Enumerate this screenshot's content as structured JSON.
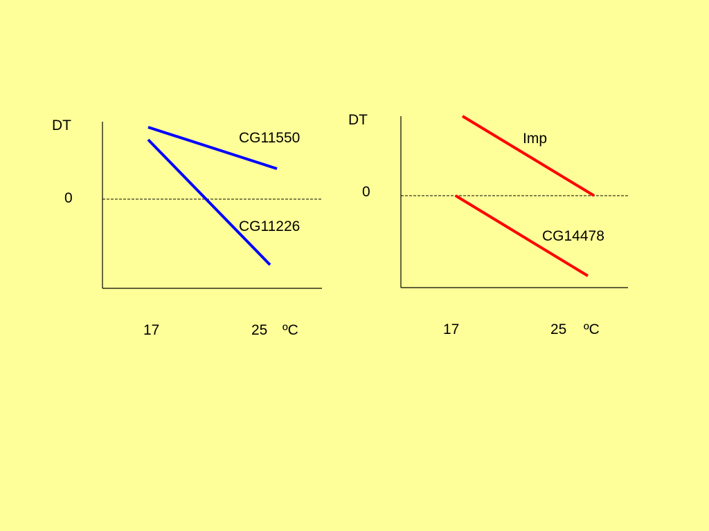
{
  "colors": {
    "background": "#FFFF99",
    "left_lines": "#0000FF",
    "right_lines": "#FF0000",
    "axis": "#000000"
  },
  "left_panel": {
    "y_label": "DT",
    "zero_label": "0",
    "x_tick_17": "17",
    "x_tick_25": "25",
    "x_unit": "ºC",
    "line_upper_label": "CG11550",
    "line_lower_label": "CG11226"
  },
  "right_panel": {
    "y_label": "DT",
    "zero_label": "0",
    "x_tick_17": "17",
    "x_tick_25": "25",
    "x_unit": "ºC",
    "line_upper_label": "Imp",
    "line_lower_label": "CG14478"
  }
}
